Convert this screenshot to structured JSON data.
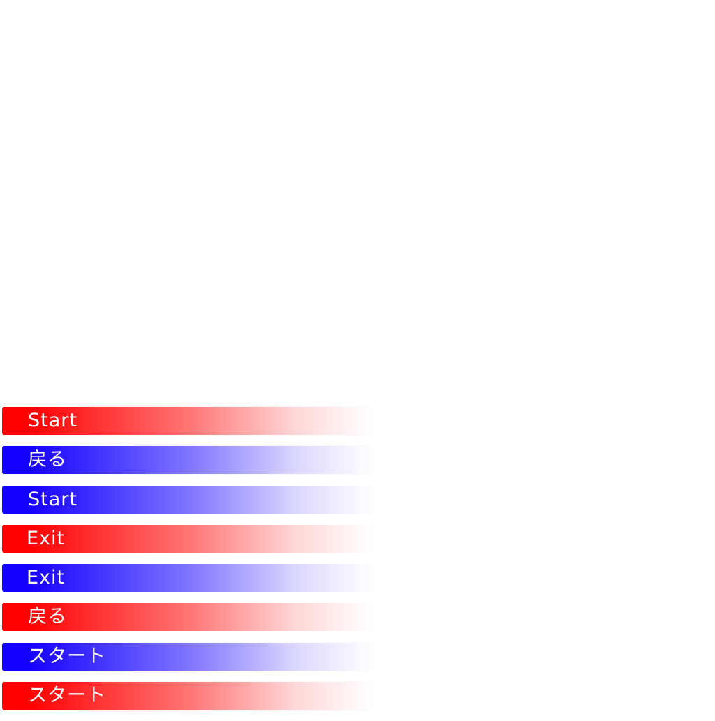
{
  "colors": {
    "red": "#ff0000",
    "blue": "#1400ff"
  },
  "menu": {
    "items": [
      {
        "label": "Start",
        "color": "red"
      },
      {
        "label": "戻る",
        "color": "blue"
      },
      {
        "label": "Start",
        "color": "blue"
      },
      {
        "label": "Exit",
        "color": "red"
      },
      {
        "label": "Exit",
        "color": "blue"
      },
      {
        "label": "戻る",
        "color": "red"
      },
      {
        "label": "スタート",
        "color": "blue"
      },
      {
        "label": "スタート",
        "color": "red"
      }
    ]
  }
}
